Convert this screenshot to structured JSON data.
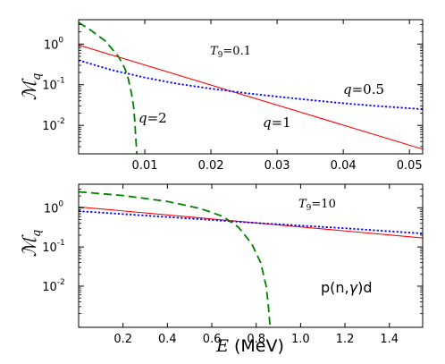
{
  "chart_data": [
    {
      "type": "line",
      "panel": "top",
      "xlabel": "",
      "ylabel": "M_q",
      "xlim": [
        0.0,
        0.052
      ],
      "ylim_log10": [
        -2.7,
        0.6
      ],
      "yscale": "log",
      "x_ticks": [
        0.01,
        0.02,
        0.03,
        0.04,
        0.05
      ],
      "x_tick_labels": [
        "0.01",
        "0.02",
        "0.03",
        "0.04",
        "0.05"
      ],
      "y_ticks_log10": [
        0,
        -1,
        -2
      ],
      "y_tick_labels": [
        "10",
        "10",
        "10"
      ],
      "y_tick_exponents": [
        "0",
        "-1",
        "-2"
      ],
      "annotations": [
        {
          "text": "T",
          "sub": "9",
          "rest": "=0.1"
        },
        {
          "text": "q",
          "rest": "=0.5"
        },
        {
          "text": "q",
          "rest": "=2"
        },
        {
          "text": "q",
          "rest": "=1"
        }
      ],
      "series": [
        {
          "q": 1,
          "style": "solid",
          "color": "#ff0000",
          "x": [
            0.0,
            0.052
          ],
          "y": [
            0.95,
            0.0026
          ]
        },
        {
          "q": 0.5,
          "style": "dotted",
          "color": "#0000ff",
          "x": [
            0.0,
            0.005,
            0.01,
            0.015,
            0.02,
            0.025,
            0.03,
            0.035,
            0.04,
            0.045,
            0.052
          ],
          "y": [
            0.4,
            0.23,
            0.15,
            0.105,
            0.08,
            0.063,
            0.051,
            0.042,
            0.035,
            0.03,
            0.025
          ]
        },
        {
          "q": 2,
          "style": "dashed",
          "color": "#008000",
          "x": [
            0.0,
            0.002,
            0.004,
            0.006,
            0.007,
            0.0075,
            0.008,
            0.0083,
            0.0085,
            0.0086,
            0.0088
          ],
          "y": [
            3.4,
            2.1,
            1.2,
            0.5,
            0.25,
            0.14,
            0.06,
            0.03,
            0.012,
            0.006,
            0.002
          ]
        }
      ]
    },
    {
      "type": "line",
      "panel": "bottom",
      "xlabel": "E",
      "xlabel_unit": "(MeV)",
      "ylabel": "M_q",
      "xlim": [
        0.0,
        1.55
      ],
      "ylim_log10": [
        -3.05,
        0.6
      ],
      "yscale": "log",
      "x_ticks": [
        0.2,
        0.4,
        0.6,
        0.8,
        1.0,
        1.2,
        1.4
      ],
      "x_tick_labels": [
        "0.2",
        "0.4",
        "0.6",
        "0.8",
        "1.0",
        "1.2",
        "1.4"
      ],
      "y_ticks_log10": [
        0,
        -1,
        -2
      ],
      "y_tick_labels": [
        "10",
        "10",
        "10"
      ],
      "y_tick_exponents": [
        "0",
        "-1",
        "-2"
      ],
      "annotations": [
        {
          "text": "T",
          "sub": "9",
          "rest": "=10"
        },
        {
          "text": "p(n,",
          "greek": "γ",
          "rest": ")d"
        }
      ],
      "series": [
        {
          "q": 1,
          "style": "solid",
          "color": "#ff0000",
          "x": [
            0.0,
            1.55
          ],
          "y": [
            1.05,
            0.17
          ]
        },
        {
          "q": 0.5,
          "style": "dotted",
          "color": "#0000ff",
          "x": [
            0.0,
            0.4,
            0.8,
            1.2,
            1.55
          ],
          "y": [
            0.82,
            0.58,
            0.41,
            0.3,
            0.22
          ]
        },
        {
          "q": 2,
          "style": "dashed",
          "color": "#008000",
          "x": [
            0.0,
            0.2,
            0.4,
            0.55,
            0.65,
            0.72,
            0.78,
            0.82,
            0.845,
            0.855,
            0.862
          ],
          "y": [
            2.55,
            2.05,
            1.45,
            0.95,
            0.6,
            0.32,
            0.12,
            0.04,
            0.01,
            0.003,
            0.001
          ]
        }
      ]
    }
  ]
}
